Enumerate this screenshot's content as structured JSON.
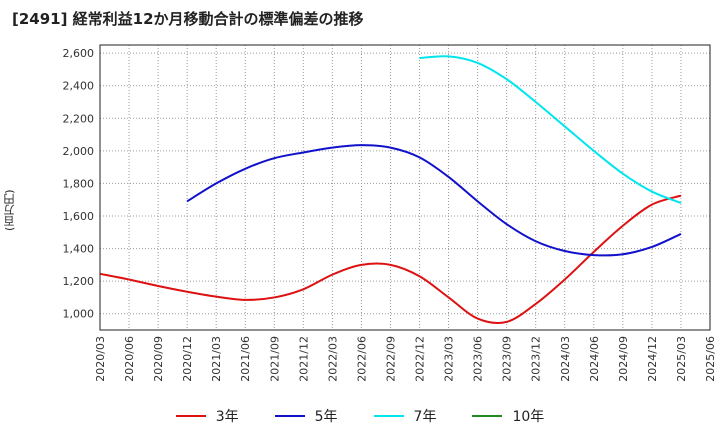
{
  "title": "[2491]  経常利益12か月移動合計の標準偏差の推移",
  "chart_data": {
    "type": "line",
    "title": "[2491]  経常利益12か月移動合計の標準偏差の推移",
    "ylabel": "(百万円)",
    "xlabel": "",
    "ylim": [
      900,
      2650
    ],
    "yticks": [
      1000,
      1200,
      1400,
      1600,
      1800,
      2000,
      2200,
      2400,
      2600
    ],
    "ytick_labels": [
      "1,000",
      "1,200",
      "1,400",
      "1,600",
      "1,800",
      "2,000",
      "2,200",
      "2,400",
      "2,600"
    ],
    "x_ticks": [
      "2020/03",
      "2020/06",
      "2020/09",
      "2020/12",
      "2021/03",
      "2021/06",
      "2021/09",
      "2021/12",
      "2022/03",
      "2022/06",
      "2022/09",
      "2022/12",
      "2023/03",
      "2023/06",
      "2023/09",
      "2023/12",
      "2024/03",
      "2024/06",
      "2024/09",
      "2024/12",
      "2025/03",
      "2025/06"
    ],
    "grid": true,
    "legend_position": "bottom",
    "series": [
      {
        "name": "3年",
        "color": "#dd1111",
        "x": [
          "2020/03",
          "2020/06",
          "2020/09",
          "2020/12",
          "2021/03",
          "2021/06",
          "2021/09",
          "2021/12",
          "2022/03",
          "2022/06",
          "2022/09",
          "2022/12",
          "2023/03",
          "2023/06",
          "2023/09",
          "2023/12",
          "2024/03",
          "2024/06",
          "2024/09",
          "2024/12",
          "2025/03"
        ],
        "values": [
          1245,
          1210,
          1170,
          1135,
          1105,
          1085,
          1100,
          1150,
          1240,
          1300,
          1300,
          1230,
          1100,
          970,
          950,
          1060,
          1210,
          1380,
          1540,
          1670,
          1725
        ]
      },
      {
        "name": "5年",
        "color": "#1111cc",
        "x": [
          "2020/12",
          "2021/03",
          "2021/06",
          "2021/09",
          "2021/12",
          "2022/03",
          "2022/06",
          "2022/09",
          "2022/12",
          "2023/03",
          "2023/06",
          "2023/09",
          "2023/12",
          "2024/03",
          "2024/06",
          "2024/09",
          "2024/12",
          "2025/03"
        ],
        "values": [
          1690,
          1800,
          1890,
          1955,
          1990,
          2020,
          2035,
          2020,
          1960,
          1840,
          1690,
          1550,
          1445,
          1385,
          1360,
          1365,
          1410,
          1490
        ]
      },
      {
        "name": "7年",
        "color": "#00e5ee",
        "x": [
          "2022/12",
          "2023/03",
          "2023/06",
          "2023/09",
          "2023/12",
          "2024/03",
          "2024/06",
          "2024/09",
          "2024/12",
          "2025/03"
        ],
        "values": [
          2570,
          2580,
          2540,
          2440,
          2300,
          2150,
          2000,
          1860,
          1750,
          1680
        ]
      },
      {
        "name": "10年",
        "color": "#228b22",
        "x": [],
        "values": []
      }
    ]
  }
}
